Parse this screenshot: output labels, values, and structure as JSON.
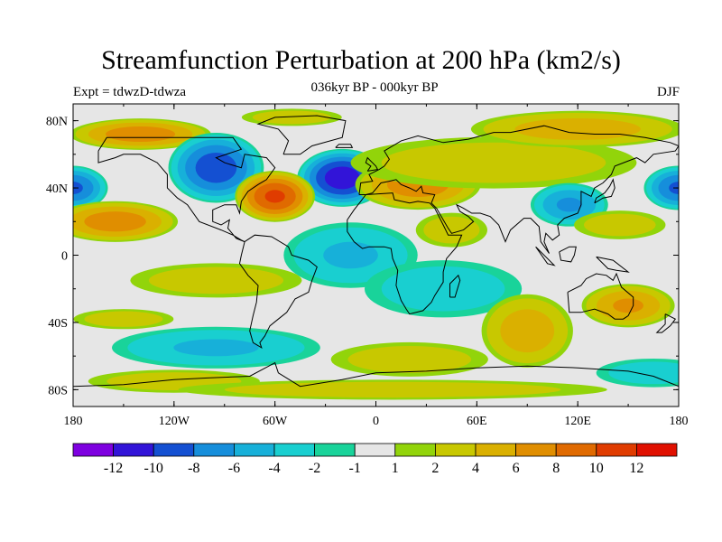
{
  "title": "Streamfunction Perturbation at 200 hPa (km2/s)",
  "subtitle": "036kyr BP - 000kyr BP",
  "left_label": "Expt = tdwzD-tdwza",
  "right_label": "DJF",
  "map": {
    "lon_range": [
      -180,
      180
    ],
    "lat_range": [
      -90,
      90
    ],
    "lat_ticks": [
      {
        "value": 80,
        "label": "80N"
      },
      {
        "value": 40,
        "label": "40N"
      },
      {
        "value": 0,
        "label": "0"
      },
      {
        "value": -40,
        "label": "40S"
      },
      {
        "value": -80,
        "label": "80S"
      }
    ],
    "lon_ticks": [
      {
        "value": -180,
        "label": "180"
      },
      {
        "value": -120,
        "label": "120W"
      },
      {
        "value": -60,
        "label": "60W"
      },
      {
        "value": 0,
        "label": "0"
      },
      {
        "value": 60,
        "label": "60E"
      },
      {
        "value": 120,
        "label": "120E"
      },
      {
        "value": 180,
        "label": "180"
      }
    ],
    "background_color": "#e6e6e6",
    "anomalies": [
      {
        "lon": -140,
        "lat": 72,
        "rx": 45,
        "ry": 10,
        "value": 7
      },
      {
        "lon": -50,
        "lat": 82,
        "rx": 35,
        "ry": 6,
        "value": 3
      },
      {
        "lon": -95,
        "lat": 52,
        "rx": 30,
        "ry": 22,
        "value": -9
      },
      {
        "lon": -20,
        "lat": 46,
        "rx": 28,
        "ry": 18,
        "value": -11
      },
      {
        "lon": -180,
        "lat": 40,
        "rx": 22,
        "ry": 14,
        "value": -8
      },
      {
        "lon": 180,
        "lat": 40,
        "rx": 22,
        "ry": 14,
        "value": -8
      },
      {
        "lon": -155,
        "lat": 20,
        "rx": 40,
        "ry": 13,
        "value": 7
      },
      {
        "lon": -60,
        "lat": 35,
        "rx": 25,
        "ry": 16,
        "value": 10
      },
      {
        "lon": 25,
        "lat": 42,
        "rx": 40,
        "ry": 16,
        "value": 7
      },
      {
        "lon": 45,
        "lat": 15,
        "rx": 25,
        "ry": 12,
        "value": 3
      },
      {
        "lon": 70,
        "lat": 55,
        "rx": 100,
        "ry": 18,
        "value": 3
      },
      {
        "lon": 120,
        "lat": 75,
        "rx": 70,
        "ry": 12,
        "value": 5
      },
      {
        "lon": 115,
        "lat": 30,
        "rx": 25,
        "ry": 14,
        "value": -6
      },
      {
        "lon": 145,
        "lat": 18,
        "rx": 32,
        "ry": 10,
        "value": 3
      },
      {
        "lon": -15,
        "lat": 0,
        "rx": 45,
        "ry": 22,
        "value": -4
      },
      {
        "lon": 40,
        "lat": -20,
        "rx": 55,
        "ry": 20,
        "value": -3
      },
      {
        "lon": -95,
        "lat": -15,
        "rx": 60,
        "ry": 12,
        "value": 3
      },
      {
        "lon": -150,
        "lat": -38,
        "rx": 35,
        "ry": 7,
        "value": 3
      },
      {
        "lon": -95,
        "lat": -55,
        "rx": 70,
        "ry": 14,
        "value": -4
      },
      {
        "lon": -120,
        "lat": -75,
        "rx": 60,
        "ry": 8,
        "value": 3
      },
      {
        "lon": 90,
        "lat": -45,
        "rx": 30,
        "ry": 24,
        "value": 5
      },
      {
        "lon": 150,
        "lat": -30,
        "rx": 30,
        "ry": 14,
        "value": 6
      },
      {
        "lon": 20,
        "lat": -62,
        "rx": 55,
        "ry": 12,
        "value": 3
      },
      {
        "lon": 165,
        "lat": -70,
        "rx": 40,
        "ry": 10,
        "value": -3
      },
      {
        "lon": 10,
        "lat": -80,
        "rx": 150,
        "ry": 7,
        "value": 3
      }
    ]
  },
  "colorbar": {
    "colors": [
      "#7e00e0",
      "#3214d8",
      "#1450d2",
      "#168edb",
      "#17b0d9",
      "#19cfd0",
      "#19d39a",
      "#e6e6e6",
      "#92d40a",
      "#c8c800",
      "#dab000",
      "#e08e00",
      "#e06a00",
      "#e03c00",
      "#e01000"
    ],
    "labels": [
      "-12",
      "-10",
      "-8",
      "-6",
      "-4",
      "-2",
      "-1",
      "1",
      "2",
      "4",
      "6",
      "8",
      "10",
      "12"
    ]
  }
}
